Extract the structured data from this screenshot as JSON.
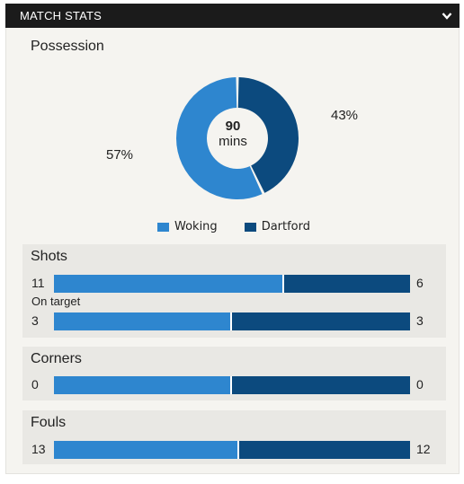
{
  "header": {
    "title": "MATCH STATS",
    "toggle_icon": "chevron-down-icon"
  },
  "colors": {
    "home": "#2e86cf",
    "away": "#0c4a7e"
  },
  "teams": {
    "home": "Woking",
    "away": "Dartford"
  },
  "possession": {
    "title": "Possession",
    "home_pct": 57,
    "away_pct": 43,
    "home_label": "57%",
    "away_label": "43%",
    "center_value": "90",
    "center_unit": "mins"
  },
  "shots": {
    "title": "Shots",
    "home": "11",
    "away": "6",
    "sub_label": "On target",
    "target_home": "3",
    "target_away": "3"
  },
  "corners": {
    "title": "Corners",
    "home": "0",
    "away": "0"
  },
  "fouls": {
    "title": "Fouls",
    "home": "13",
    "away": "12"
  }
}
